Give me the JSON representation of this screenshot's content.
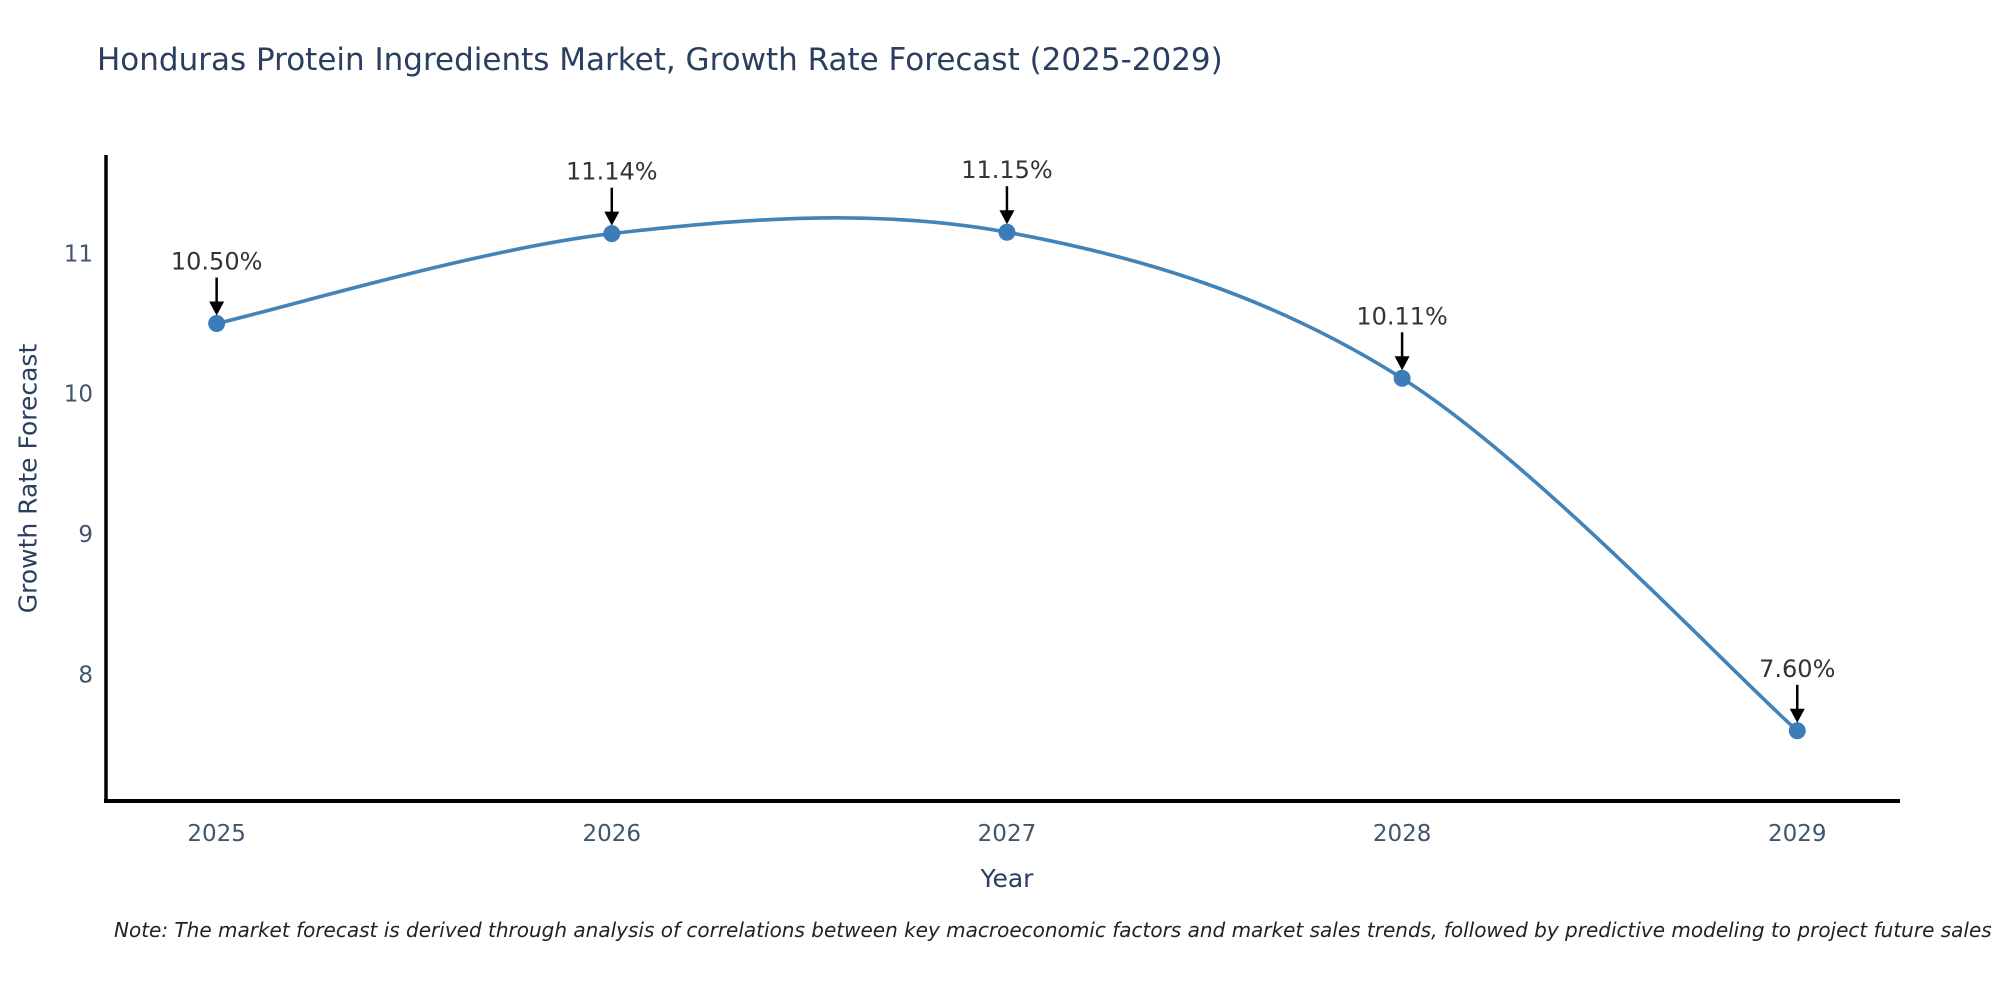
{
  "title": "Honduras Protein Ingredients Market, Growth Rate Forecast (2025-2029)",
  "note": "Note: The market forecast is derived through analysis of correlations between key macroeconomic factors and market sales trends, followed by predictive modeling to project future sales",
  "chart_data": {
    "type": "line",
    "title": "Honduras Protein Ingredients Market, Growth Rate Forecast (2025-2029)",
    "xlabel": "Year",
    "ylabel": "Growth Rate Forecast",
    "x": [
      2025,
      2026,
      2027,
      2028,
      2029
    ],
    "values": [
      10.5,
      11.14,
      11.15,
      10.11,
      7.6
    ],
    "point_labels": [
      "10.50%",
      "11.14%",
      "11.15%",
      "10.11%",
      "7.60%"
    ],
    "x_tick_labels": [
      "2025",
      "2026",
      "2027",
      "2028",
      "2029"
    ],
    "y_ticks": [
      8,
      9,
      10,
      11
    ],
    "xlim": [
      2024.72,
      2029.26
    ],
    "ylim": [
      7.1,
      11.7
    ],
    "line_shape": "spline",
    "grid": false,
    "legend": "none",
    "colors": {
      "line": "#4283b8",
      "marker": "#3c7cb8",
      "axis_line": "#000000",
      "tick_text": "#42566b",
      "annotation": "#333333",
      "background": "#ffffff"
    }
  }
}
